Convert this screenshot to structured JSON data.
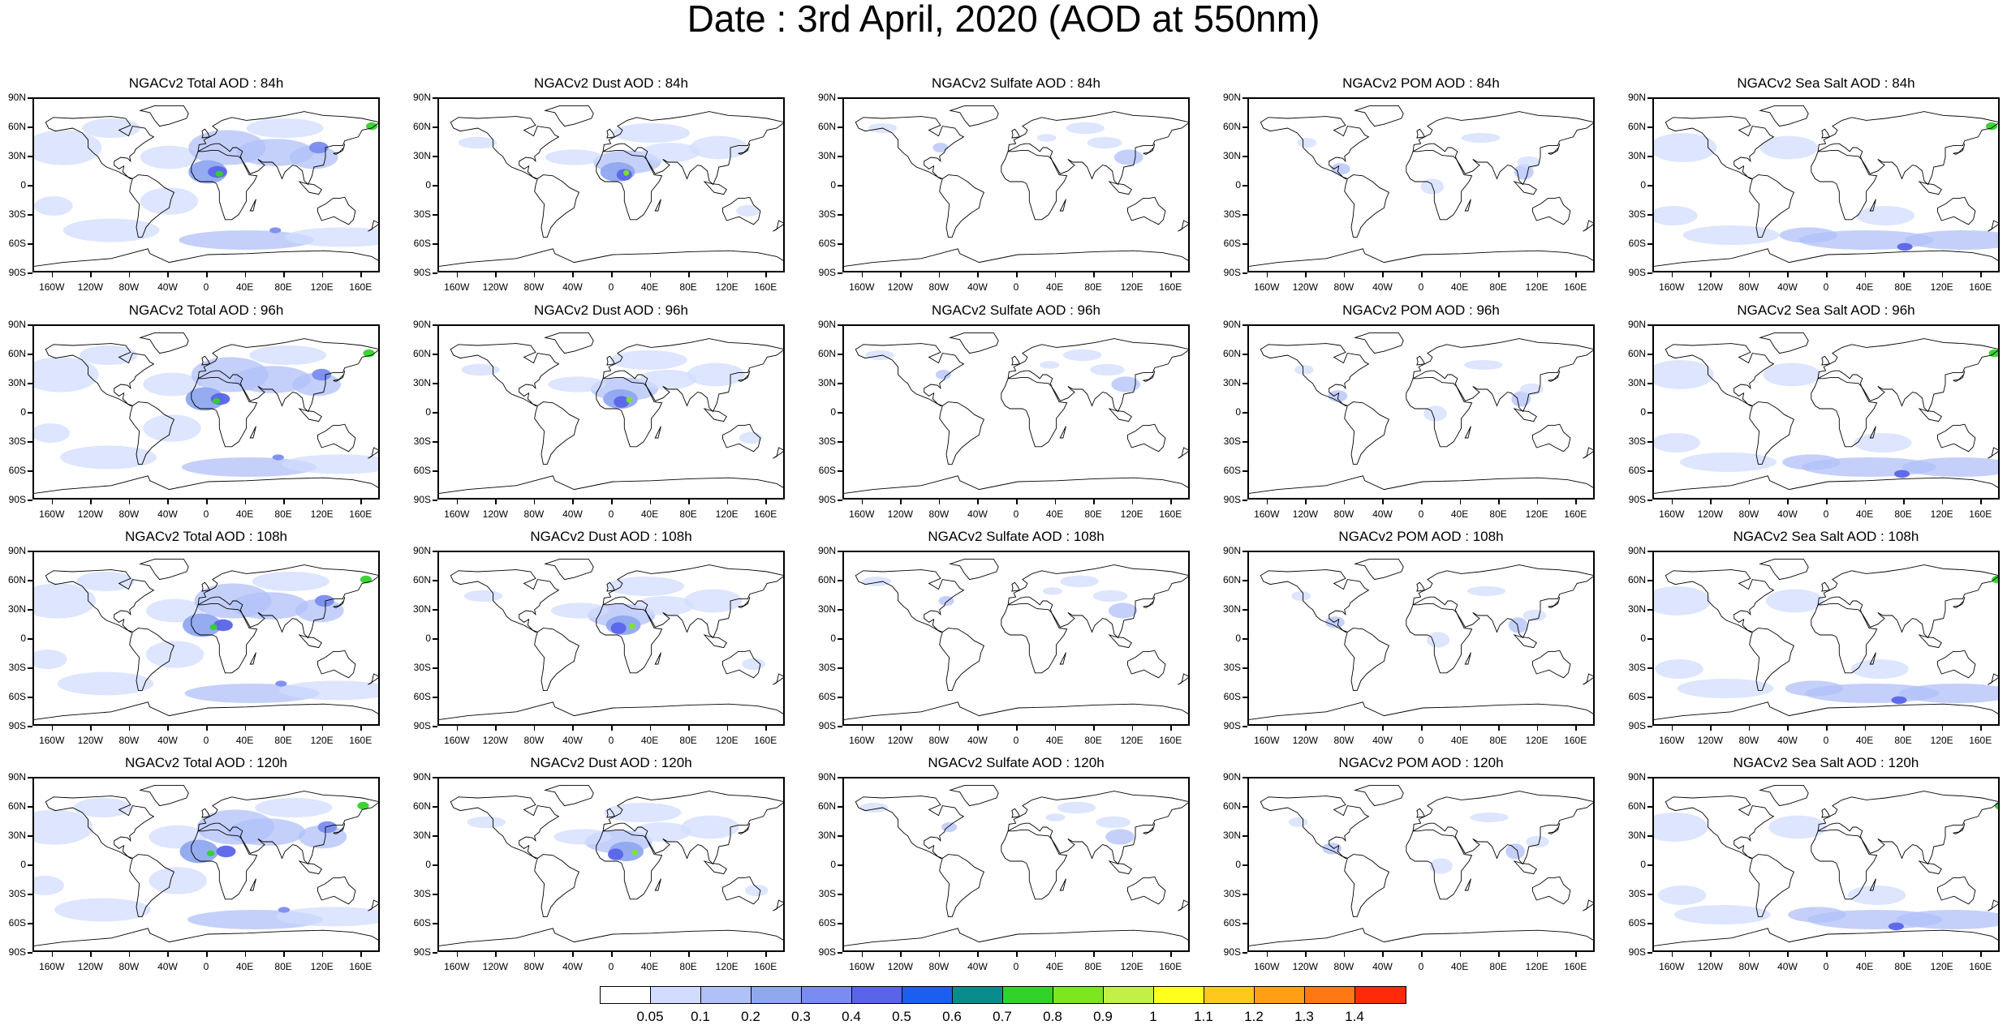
{
  "title": "Date : 3rd April, 2020 (AOD at 550nm)",
  "panel_titles": [
    [
      "NGACv2 Total AOD : 84h",
      "NGACv2 Dust AOD : 84h",
      "NGACv2 Sulfate AOD : 84h",
      "NGACv2 POM AOD : 84h",
      "NGACv2 Sea Salt AOD : 84h"
    ],
    [
      "NGACv2 Total AOD : 96h",
      "NGACv2 Dust AOD : 96h",
      "NGACv2 Sulfate AOD : 96h",
      "NGACv2 POM AOD : 96h",
      "NGACv2 Sea Salt AOD : 96h"
    ],
    [
      "NGACv2 Total AOD : 108h",
      "NGACv2 Dust AOD : 108h",
      "NGACv2 Sulfate AOD : 108h",
      "NGACv2 POM AOD : 108h",
      "NGACv2 Sea Salt AOD : 108h"
    ],
    [
      "NGACv2 Total AOD : 120h",
      "NGACv2 Dust AOD : 120h",
      "NGACv2 Sulfate AOD : 120h",
      "NGACv2 POM AOD : 120h",
      "NGACv2 Sea Salt  AOD : 120h"
    ]
  ],
  "panel_types": [
    "total",
    "dust",
    "sulfate",
    "pom",
    "seasalt"
  ],
  "lat_labels": [
    "90N",
    "60N",
    "30N",
    "0",
    "30S",
    "60S",
    "90S"
  ],
  "lon_labels": [
    "160W",
    "120W",
    "80W",
    "40W",
    "0",
    "40E",
    "80E",
    "120E",
    "160E"
  ],
  "lon_values": [
    -160,
    -120,
    -80,
    -40,
    0,
    40,
    80,
    120,
    160
  ],
  "lat_values": [
    90,
    60,
    30,
    0,
    -30,
    -60,
    -90
  ],
  "colorbar": {
    "labels": [
      "0.05",
      "0.1",
      "0.2",
      "0.3",
      "0.4",
      "0.5",
      "0.6",
      "0.7",
      "0.8",
      "0.9",
      "1",
      "1.1",
      "1.2",
      "1.3",
      "1.4"
    ],
    "colors": [
      "#ffffff",
      "#d2dcff",
      "#b0c0f8",
      "#90a8f0",
      "#7a8cf0",
      "#5a64ea",
      "#1a5ff0",
      "#0a8c8c",
      "#32d22a",
      "#7ce61e",
      "#c2f046",
      "#ffff1e",
      "#ffc81e",
      "#ffa014",
      "#ff7814",
      "#ff2a0a"
    ]
  }
}
